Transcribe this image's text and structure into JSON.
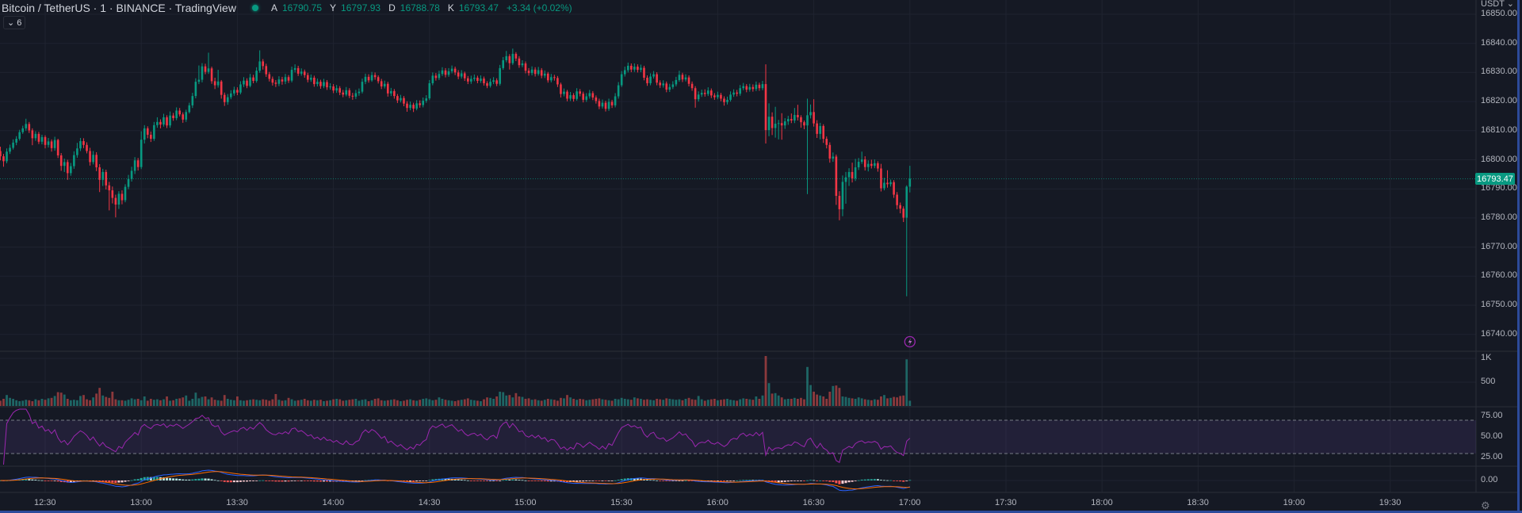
{
  "header": {
    "title": "Bitcoin / TetherUS · 1 · BINANCE · TradingView",
    "status": "market-open-dot",
    "ohlc": [
      {
        "key": "A",
        "value": "16790.75"
      },
      {
        "key": "Y",
        "value": "16797.93"
      },
      {
        "key": "D",
        "value": "16788.78"
      },
      {
        "key": "K",
        "value": "16793.47"
      }
    ],
    "change": "+3.34 (+0.02%)",
    "indicators_toggle": {
      "icon": "chevron-down-icon",
      "count": "6"
    }
  },
  "price_axis": {
    "currency": "USDT ⌄",
    "last_price": "16793.47",
    "settings_icon": "gear-icon"
  },
  "colors": {
    "up": "#089981",
    "down": "#f23645",
    "rsi": "#9c27b0",
    "macd": "#2962ff",
    "signal": "#ff6d00",
    "background": "#151924"
  },
  "chart_data": {
    "type": "candlestick",
    "symbol": "BTCUSDT",
    "interval_minutes": 1,
    "start_time": "12:16",
    "first_open": 16803.0,
    "price_ticks": [
      "16850.00",
      "16840.00",
      "16830.00",
      "16820.00",
      "16810.00",
      "16800.00",
      "16790.00",
      "16780.00",
      "16770.00",
      "16760.00",
      "16750.00",
      "16740.00"
    ],
    "volume_ticks": [
      {
        "label": "1K",
        "value": 1000
      },
      {
        "label": "500",
        "value": 500
      }
    ],
    "rsi_ticks": [
      "75.00",
      "50.00",
      "25.00"
    ],
    "rsi_bands": [
      70,
      30
    ],
    "macd_ticks": [
      "0.00"
    ],
    "time_ticks": [
      "12:30",
      "13:00",
      "13:30",
      "14:00",
      "14:30",
      "15:00",
      "15:30",
      "16:00",
      "16:30",
      "17:00",
      "17:30",
      "18:00",
      "18:30",
      "19:00",
      "19:30"
    ],
    "alert_marker": {
      "icon": "lightning-icon",
      "time": "17:00"
    },
    "close": [
      16801.2,
      16799.5,
      16802.8,
      16804.1,
      16805.9,
      16807.2,
      16809.5,
      16810.8,
      16812.3,
      16810.1,
      16807.4,
      16808.9,
      16806.2,
      16807.8,
      16805.1,
      16806.3,
      16804.0,
      16806.8,
      16801.5,
      16797.9,
      16799.2,
      16795.4,
      16797.8,
      16801.6,
      16803.9,
      16806.4,
      16805.1,
      16803.0,
      16799.2,
      16801.7,
      16797.4,
      16793.1,
      16795.8,
      16791.2,
      16789.5,
      16786.9,
      16784.6,
      16788.3,
      16786.1,
      16790.7,
      16793.4,
      16796.2,
      16799.8,
      16797.5,
      16806.9,
      16810.8,
      16808.6,
      16807.2,
      16811.9,
      16813.0,
      16812.1,
      16814.6,
      16811.8,
      16815.2,
      16814.3,
      16816.9,
      16815.6,
      16813.8,
      16816.4,
      16818.7,
      16821.9,
      16826.8,
      16827.5,
      16832.1,
      16830.2,
      16831.4,
      16827.0,
      16825.6,
      16826.9,
      16822.3,
      16819.8,
      16821.5,
      16822.8,
      16824.0,
      16823.1,
      16825.9,
      16827.2,
      16825.4,
      16828.3,
      16827.1,
      16830.6,
      16833.8,
      16832.2,
      16829.4,
      16827.8,
      16826.5,
      16826.1,
      16827.6,
      16826.9,
      16828.4,
      16827.2,
      16830.9,
      16831.5,
      16829.6,
      16830.3,
      16829.1,
      16827.5,
      16828.2,
      16826.0,
      16826.8,
      16825.3,
      16826.7,
      16824.9,
      16825.2,
      16823.8,
      16824.6,
      16823.1,
      16822.4,
      16823.9,
      16822.0,
      16821.7,
      16822.9,
      16823.4,
      16826.8,
      16828.5,
      16827.3,
      16829.1,
      16828.4,
      16827.0,
      16825.2,
      16826.1,
      16822.8,
      16823.6,
      16821.9,
      16820.4,
      16821.2,
      16819.3,
      16817.8,
      16818.9,
      16817.6,
      16819.4,
      16818.8,
      16820.3,
      16821.1,
      16826.3,
      16828.9,
      16828.1,
      16829.5,
      16830.7,
      16829.2,
      16830.4,
      16831.3,
      16830.0,
      16828.6,
      16829.7,
      16828.0,
      16826.9,
      16827.8,
      16828.2,
      16827.1,
      16827.9,
      16826.3,
      16825.4,
      16826.8,
      16827.3,
      16826.1,
      16831.5,
      16834.2,
      16835.6,
      16833.2,
      16836.4,
      16834.8,
      16832.5,
      16833.1,
      16830.6,
      16829.8,
      16831.0,
      16829.5,
      16830.8,
      16828.9,
      16829.6,
      16827.3,
      16828.4,
      16828.1,
      16825.9,
      16822.6,
      16823.4,
      16821.0,
      16822.2,
      16820.9,
      16823.5,
      16822.7,
      16820.6,
      16821.8,
      16822.9,
      16821.4,
      16820.2,
      16818.3,
      16819.6,
      16817.5,
      16819.9,
      16818.7,
      16821.8,
      16825.6,
      16829.4,
      16830.8,
      16832.3,
      16831.0,
      16832.0,
      16830.9,
      16831.6,
      16828.2,
      16826.3,
      16828.6,
      16829.4,
      16826.5,
      16825.6,
      16826.2,
      16824.1,
      16825.0,
      16825.9,
      16827.4,
      16829.2,
      16827.6,
      16828.3,
      16826.1,
      16824.6,
      16820.8,
      16822.4,
      16823.0,
      16822.6,
      16823.8,
      16822.1,
      16821.5,
      16822.3,
      16821.0,
      16819.8,
      16820.6,
      16822.4,
      16823.1,
      16822.7,
      16824.6,
      16825.3,
      16824.1,
      16825.0,
      16824.3,
      16825.8,
      16824.6,
      16826.0,
      16810.2,
      16814.8,
      16810.9,
      16812.4,
      16812.6,
      16811.8,
      16813.2,
      16814.0,
      16813.5,
      16815.4,
      16814.6,
      16812.9,
      16811.8,
      16815.3,
      16816.4,
      16812.5,
      16808.9,
      16811.6,
      16807.2,
      16805.1,
      16800.4,
      16801.1,
      16787.6,
      16783.0,
      16792.4,
      16794.0,
      16795.8,
      16793.6,
      16797.4,
      16799.3,
      16800.1,
      16797.5,
      16798.6,
      16797.9,
      16798.8,
      16797.0,
      16790.2,
      16792.1,
      16791.6,
      16792.3,
      16788.0,
      16784.4,
      16783.2,
      16780.1,
      16790.75,
      16793.47
    ],
    "high": [
      16804.5,
      16802.0,
      16803.9,
      16805.2,
      16807.0,
      16808.1,
      16810.3,
      16811.7,
      16814.1,
      16813.0,
      16810.8,
      16809.8,
      16809.6,
      16808.6,
      16808.4,
      16807.5,
      16807.0,
      16807.9,
      16807.2,
      16802.3,
      16800.4,
      16800.0,
      16798.9,
      16802.9,
      16805.8,
      16807.5,
      16807.4,
      16806.0,
      16804.1,
      16803.0,
      16802.6,
      16798.5,
      16796.9,
      16796.6,
      16792.4,
      16790.8,
      16788.0,
      16789.2,
      16789.5,
      16791.6,
      16794.8,
      16797.6,
      16800.9,
      16800.6,
      16809.8,
      16811.9,
      16811.5,
      16809.7,
      16813.0,
      16814.6,
      16813.9,
      16815.8,
      16815.3,
      16816.6,
      16816.1,
      16818.0,
      16817.8,
      16816.3,
      16817.2,
      16819.6,
      16823.0,
      16828.0,
      16832.4,
      16833.2,
      16833.0,
      16836.8,
      16832.0,
      16828.2,
      16830.9,
      16827.4,
      16823.1,
      16822.6,
      16823.9,
      16825.1,
      16824.9,
      16827.0,
      16828.4,
      16828.0,
      16829.5,
      16829.2,
      16831.8,
      16837.6,
      16834.6,
      16833.0,
      16830.2,
      16828.6,
      16827.4,
      16828.7,
      16828.5,
      16829.5,
      16829.1,
      16832.0,
      16832.8,
      16832.3,
      16831.4,
      16831.0,
      16829.9,
      16829.3,
      16828.9,
      16827.9,
      16827.5,
      16827.8,
      16827.4,
      16826.3,
      16826.0,
      16825.7,
      16825.3,
      16824.0,
      16825.0,
      16824.6,
      16823.0,
      16824.0,
      16824.5,
      16827.9,
      16829.6,
      16829.4,
      16830.2,
      16830.0,
      16829.0,
      16827.8,
      16827.2,
      16826.8,
      16824.7,
      16824.3,
      16822.6,
      16822.3,
      16821.9,
      16820.1,
      16820.0,
      16819.6,
      16820.5,
      16820.4,
      16821.4,
      16822.2,
      16827.4,
      16830.0,
      16829.8,
      16830.6,
      16831.8,
      16831.5,
      16831.5,
      16832.4,
      16832.0,
      16830.8,
      16830.8,
      16830.3,
      16828.8,
      16828.9,
      16829.3,
      16828.9,
      16829.0,
      16828.6,
      16827.0,
      16827.9,
      16828.4,
      16828.0,
      16832.6,
      16835.3,
      16837.4,
      16836.3,
      16838.2,
      16837.0,
      16835.6,
      16834.2,
      16833.8,
      16831.5,
      16832.1,
      16831.8,
      16831.9,
      16831.5,
      16830.7,
      16830.2,
      16829.5,
      16829.2,
      16828.8,
      16826.5,
      16824.5,
      16824.0,
      16823.3,
      16822.9,
      16824.6,
      16824.3,
      16823.4,
      16822.9,
      16824.0,
      16823.6,
      16822.1,
      16821.0,
      16820.7,
      16820.3,
      16821.0,
      16820.6,
      16822.9,
      16826.7,
      16830.5,
      16832.0,
      16833.4,
      16833.1,
      16833.1,
      16832.8,
      16832.7,
      16832.3,
      16829.0,
      16829.7,
      16830.5,
      16830.1,
      16827.3,
      16827.3,
      16826.9,
      16826.1,
      16827.0,
      16828.5,
      16830.6,
      16829.9,
      16829.4,
      16829.0,
      16826.9,
      16825.3,
      16823.5,
      16824.1,
      16824.2,
      16824.9,
      16824.5,
      16822.9,
      16823.4,
      16823.0,
      16821.8,
      16821.7,
      16823.5,
      16824.2,
      16824.0,
      16825.7,
      16826.4,
      16826.0,
      16826.1,
      16825.9,
      16826.9,
      16826.5,
      16827.1,
      16832.8,
      16819.4,
      16816.3,
      16818.2,
      16813.7,
      16816.0,
      16814.3,
      16815.1,
      16815.9,
      16817.8,
      16818.9,
      16815.3,
      16813.5,
      16821.0,
      16819.0,
      16820.8,
      16813.6,
      16812.7,
      16812.2,
      16808.0,
      16806.0,
      16802.5,
      16801.8,
      16789.2,
      16794.6,
      16795.8,
      16797.1,
      16799.0,
      16800.3,
      16800.6,
      16802.8,
      16801.2,
      16799.8,
      16800.0,
      16800.1,
      16799.5,
      16798.6,
      16793.8,
      16796.4,
      16793.2,
      16793.0,
      16788.9,
      16785.3,
      16784.0,
      16791.2,
      16797.93
    ],
    "low": [
      16799.8,
      16797.6,
      16798.8,
      16802.0,
      16803.5,
      16805.0,
      16806.6,
      16808.9,
      16810.0,
      16809.2,
      16805.0,
      16806.5,
      16805.4,
      16805.3,
      16803.9,
      16804.2,
      16802.8,
      16803.1,
      16800.6,
      16796.2,
      16795.8,
      16793.1,
      16794.5,
      16796.9,
      16800.7,
      16803.0,
      16804.0,
      16802.2,
      16798.0,
      16798.4,
      16796.1,
      16788.9,
      16791.0,
      16789.8,
      16782.6,
      16785.0,
      16780.2,
      16783.1,
      16784.7,
      16785.4,
      16789.9,
      16792.5,
      16795.1,
      16796.3,
      16796.8,
      16805.6,
      16807.4,
      16806.1,
      16806.5,
      16811.0,
      16810.8,
      16811.4,
      16810.9,
      16811.0,
      16813.4,
      16813.6,
      16814.9,
      16812.7,
      16813.0,
      16815.9,
      16817.8,
      16821.1,
      16826.0,
      16826.6,
      16829.4,
      16829.5,
      16826.1,
      16824.3,
      16824.8,
      16821.0,
      16818.5,
      16818.9,
      16820.8,
      16822.0,
      16822.2,
      16822.5,
      16825.0,
      16824.6,
      16824.9,
      16826.3,
      16826.5,
      16829.9,
      16831.0,
      16828.5,
      16826.9,
      16825.5,
      16825.0,
      16825.3,
      16825.8,
      16826.0,
      16826.4,
      16826.6,
      16830.0,
      16828.8,
      16828.9,
      16828.2,
      16826.6,
      16826.8,
      16825.1,
      16825.2,
      16824.4,
      16824.6,
      16824.0,
      16824.1,
      16822.9,
      16823.0,
      16822.2,
      16821.5,
      16821.8,
      16821.2,
      16820.6,
      16820.9,
      16822.0,
      16822.8,
      16826.0,
      16826.5,
      16826.8,
      16827.5,
      16826.2,
      16824.3,
      16824.5,
      16821.7,
      16821.9,
      16821.0,
      16819.5,
      16819.7,
      16818.4,
      16816.5,
      16817.0,
      16816.4,
      16817.0,
      16817.9,
      16818.0,
      16819.6,
      16820.5,
      16825.6,
      16827.2,
      16827.4,
      16828.8,
      16828.3,
      16828.5,
      16829.7,
      16829.1,
      16827.7,
      16827.9,
      16827.1,
      16826.0,
      16826.1,
      16827.0,
      16826.3,
      16826.4,
      16825.5,
      16824.6,
      16824.8,
      16826.0,
      16825.3,
      16825.5,
      16830.9,
      16833.5,
      16831.0,
      16832.6,
      16833.9,
      16831.6,
      16831.8,
      16829.7,
      16828.9,
      16829.0,
      16828.6,
      16828.9,
      16828.0,
      16828.1,
      16826.5,
      16826.6,
      16827.2,
      16825.0,
      16821.4,
      16821.8,
      16820.1,
      16820.2,
      16820.0,
      16820.3,
      16821.8,
      16819.7,
      16819.9,
      16821.0,
      16820.5,
      16819.3,
      16817.4,
      16817.6,
      16816.6,
      16816.8,
      16817.8,
      16818.0,
      16821.0,
      16825.0,
      16828.6,
      16830.0,
      16830.1,
      16830.2,
      16830.0,
      16830.1,
      16827.3,
      16825.4,
      16825.6,
      16827.9,
      16825.6,
      16824.7,
      16824.8,
      16823.2,
      16823.3,
      16824.3,
      16825.2,
      16826.8,
      16826.7,
      16826.9,
      16825.2,
      16823.7,
      16817.9,
      16820.0,
      16821.6,
      16821.7,
      16821.9,
      16821.2,
      16820.6,
      16820.8,
      16820.1,
      16818.6,
      16819.0,
      16820.0,
      16821.6,
      16821.8,
      16822.0,
      16823.9,
      16823.2,
      16823.4,
      16823.4,
      16823.6,
      16823.7,
      16823.9,
      16805.6,
      16808.1,
      16808.5,
      16807.6,
      16807.0,
      16806.9,
      16810.6,
      16812.0,
      16812.6,
      16812.6,
      16813.5,
      16811.0,
      16810.5,
      16788.2,
      16814.2,
      16811.4,
      16807.5,
      16807.0,
      16805.8,
      16803.9,
      16799.0,
      16799.3,
      16784.5,
      16779.2,
      16780.6,
      16784.9,
      16791.0,
      16792.2,
      16792.7,
      16796.5,
      16798.6,
      16796.3,
      16796.0,
      16797.0,
      16797.1,
      16795.9,
      16789.1,
      16789.5,
      16790.4,
      16790.8,
      16786.9,
      16783.0,
      16781.6,
      16778.6,
      16753.1,
      16788.78
    ],
    "volume": [
      110,
      150,
      230,
      170,
      150,
      120,
      100,
      110,
      130,
      120,
      100,
      140,
      120,
      150,
      130,
      160,
      170,
      210,
      290,
      280,
      240,
      150,
      120,
      130,
      120,
      210,
      230,
      140,
      120,
      180,
      260,
      380,
      220,
      190,
      170,
      300,
      140,
      120,
      120,
      110,
      130,
      160,
      140,
      150,
      120,
      200,
      110,
      150,
      130,
      140,
      120,
      140,
      200,
      110,
      120,
      150,
      160,
      180,
      220,
      110,
      150,
      280,
      160,
      190,
      200,
      140,
      180,
      130,
      120,
      110,
      230,
      150,
      130,
      120,
      200,
      120,
      110,
      120,
      130,
      140,
      130,
      120,
      140,
      130,
      110,
      140,
      250,
      130,
      110,
      120,
      170,
      140,
      110,
      120,
      130,
      150,
      120,
      110,
      130,
      120,
      130,
      100,
      110,
      120,
      140,
      150,
      140,
      110,
      120,
      130,
      140,
      150,
      110,
      130,
      140,
      100,
      120,
      150,
      160,
      120,
      110,
      120,
      130,
      140,
      120,
      100,
      110,
      130,
      140,
      120,
      110,
      130,
      150,
      160,
      140,
      120,
      130,
      180,
      150,
      130,
      120,
      110,
      100,
      120,
      130,
      140,
      160,
      130,
      120,
      110,
      100,
      140,
      180,
      170,
      150,
      200,
      300,
      290,
      220,
      230,
      180,
      270,
      200,
      190,
      150,
      160,
      130,
      140,
      120,
      110,
      130,
      150,
      140,
      130,
      110,
      170,
      160,
      230,
      180,
      150,
      130,
      150,
      140,
      120,
      130,
      140,
      150,
      160,
      140,
      130,
      120,
      110,
      150,
      140,
      170,
      150,
      140,
      130,
      180,
      160,
      150,
      130,
      140,
      130,
      120,
      150,
      140,
      130,
      160,
      150,
      140,
      130,
      140,
      120,
      150,
      170,
      140,
      130,
      210,
      140,
      110,
      130,
      140,
      150,
      120,
      130,
      140,
      150,
      130,
      120,
      110,
      140,
      160,
      150,
      140,
      130,
      200,
      150,
      220,
      1050,
      480,
      260,
      270,
      220,
      180,
      140,
      150,
      150,
      170,
      150,
      170,
      140,
      820,
      440,
      300,
      240,
      220,
      200,
      150,
      300,
      420,
      430,
      380,
      200,
      190,
      170,
      160,
      150,
      180,
      160,
      140,
      130,
      120,
      140,
      130,
      200,
      230,
      160,
      170,
      190,
      180,
      210,
      220,
      980,
      110
    ]
  }
}
